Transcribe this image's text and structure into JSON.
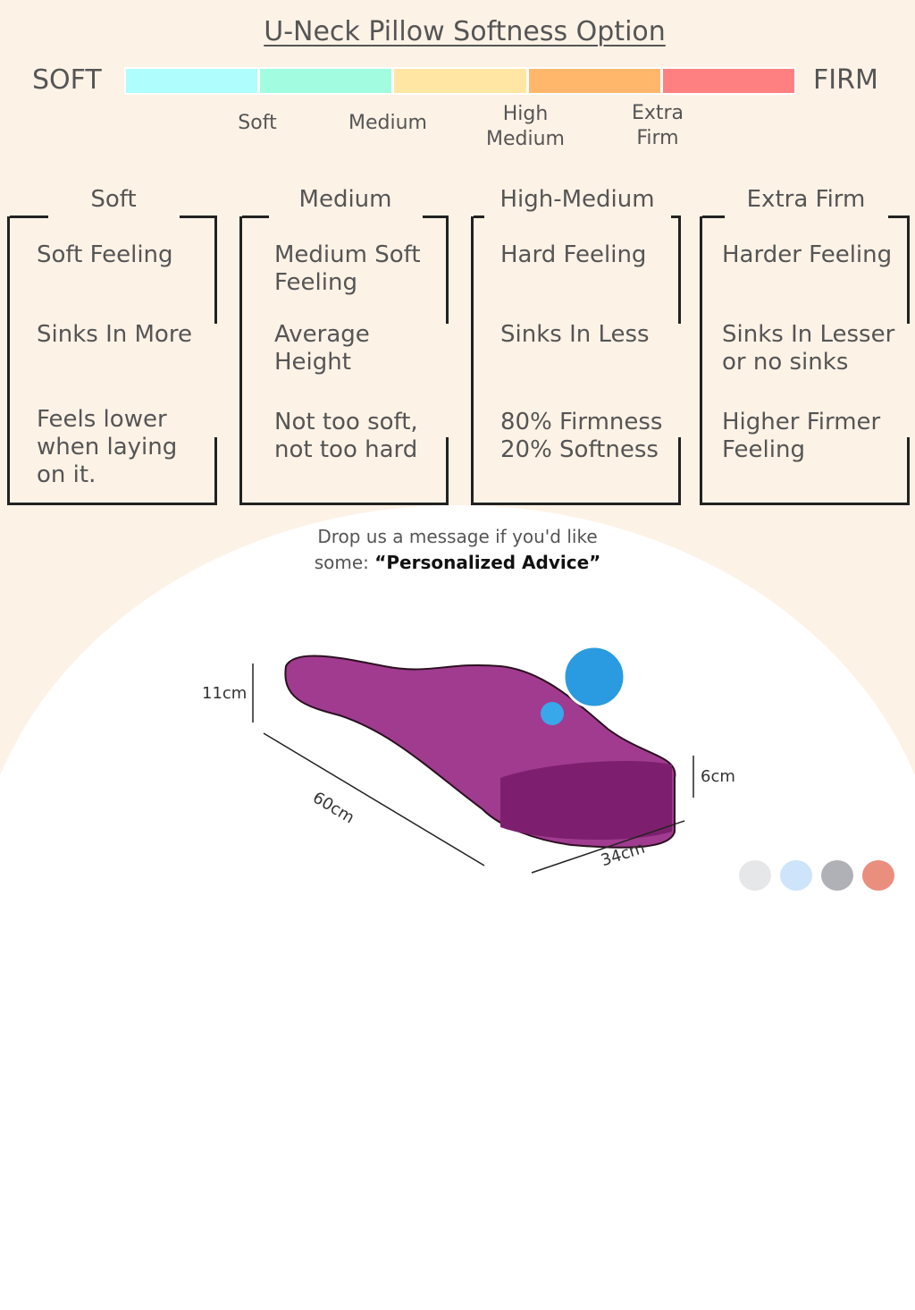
{
  "title": "U-Neck Pillow Softness Option",
  "scale": {
    "left": "SOFT",
    "right": "FIRM",
    "colors": [
      "#b0fdfd",
      "#a2fde0",
      "#ffe6a3",
      "#ffb76b",
      "#ff8080"
    ],
    "levels": [
      "Soft",
      "Medium",
      "High\nMedium",
      "Extra\nFirm"
    ]
  },
  "cards": [
    {
      "title": "Soft",
      "items": [
        "Soft Feeling",
        "Sinks In More",
        "Feels lower\nwhen laying\non it."
      ]
    },
    {
      "title": "Medium",
      "items": [
        "Medium Soft\nFeeling",
        "Average\nHeight",
        "Not too soft,\nnot too hard"
      ]
    },
    {
      "title": "High-Medium",
      "items": [
        "Hard Feeling",
        "Sinks In Less",
        "80% Firmness\n20% Softness"
      ]
    },
    {
      "title": "Extra Firm",
      "items": [
        "Harder Feeling",
        "Sinks In Lesser\nor no sinks",
        "Higher Firmer\nFeeling"
      ]
    }
  ],
  "message": {
    "line1": "Drop us a message if you'd like",
    "prefix": "some: ",
    "emphasis": "“Personalized Advice”"
  },
  "dimensions": {
    "height": "11cm",
    "length": "60cm",
    "width": "34cm",
    "edge": "6cm"
  },
  "color_options": [
    "#e6e7e9",
    "#cde4fb",
    "#b0b1b6",
    "#ea8e7e"
  ]
}
